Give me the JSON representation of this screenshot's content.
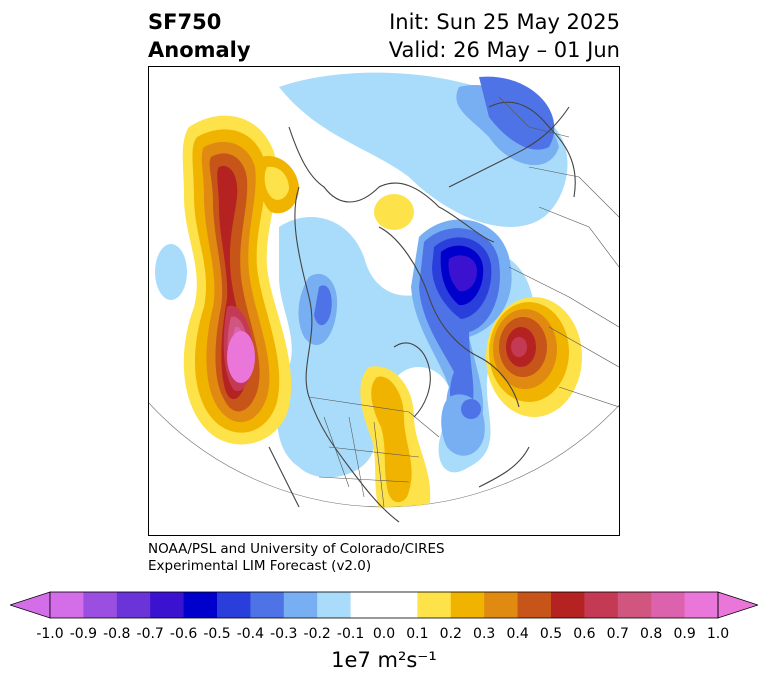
{
  "title": {
    "variable": "SF750",
    "type": "Anomaly",
    "init": "Init: Sun 25 May 2025",
    "valid": "Valid: 26 May – 01 Jun"
  },
  "credit": {
    "line1": "NOAA/PSL and University of Colorado/CIRES",
    "line2": "Experimental LIM Forecast (v2.0)"
  },
  "colorbar": {
    "units": "1e7 m²s⁻¹",
    "ticks": [
      "-1.0",
      "-0.9",
      "-0.8",
      "-0.7",
      "-0.6",
      "-0.5",
      "-0.4",
      "-0.3",
      "-0.2",
      "-0.1",
      "0.0",
      "0.1",
      "0.2",
      "0.3",
      "0.4",
      "0.5",
      "0.6",
      "0.7",
      "0.8",
      "0.9",
      "1.0"
    ],
    "colors": [
      "#d36ee8",
      "#9b4fe0",
      "#6a34d8",
      "#3a12d0",
      "#0000cc",
      "#2a3edc",
      "#4d73e6",
      "#78aef2",
      "#a9dcfa",
      "#ffffff",
      "#ffffff",
      "#fde24a",
      "#f0b400",
      "#e08a12",
      "#c75418",
      "#b42222",
      "#c43a55",
      "#d0557f",
      "#dc62ae",
      "#ea76da"
    ],
    "under_color": "#d36ee8",
    "over_color": "#ea76da"
  }
}
